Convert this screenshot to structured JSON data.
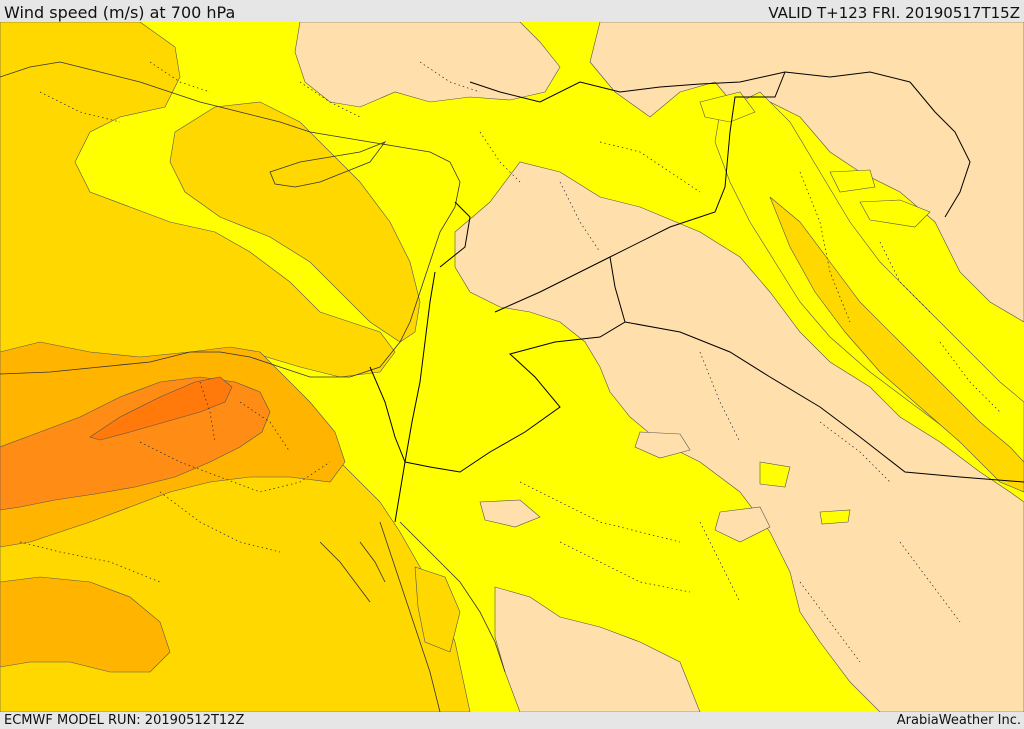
{
  "header": {
    "title": "Wind speed (m/s) at 700 hPa",
    "valid": "VALID T+123 FRI. 20190517T15Z"
  },
  "footer": {
    "model_run": "ECMWF MODEL RUN: 20190512T12Z",
    "credit": "ArabiaWeather Inc."
  },
  "map": {
    "colors": {
      "calm": "#ffdfab",
      "light": "#ffff00",
      "moderate": "#ffd800",
      "fresh": "#ffb400",
      "strong": "#ff8c14",
      "strongest": "#ff7a0a",
      "land_border": "#000000",
      "coast": "#333333"
    }
  }
}
